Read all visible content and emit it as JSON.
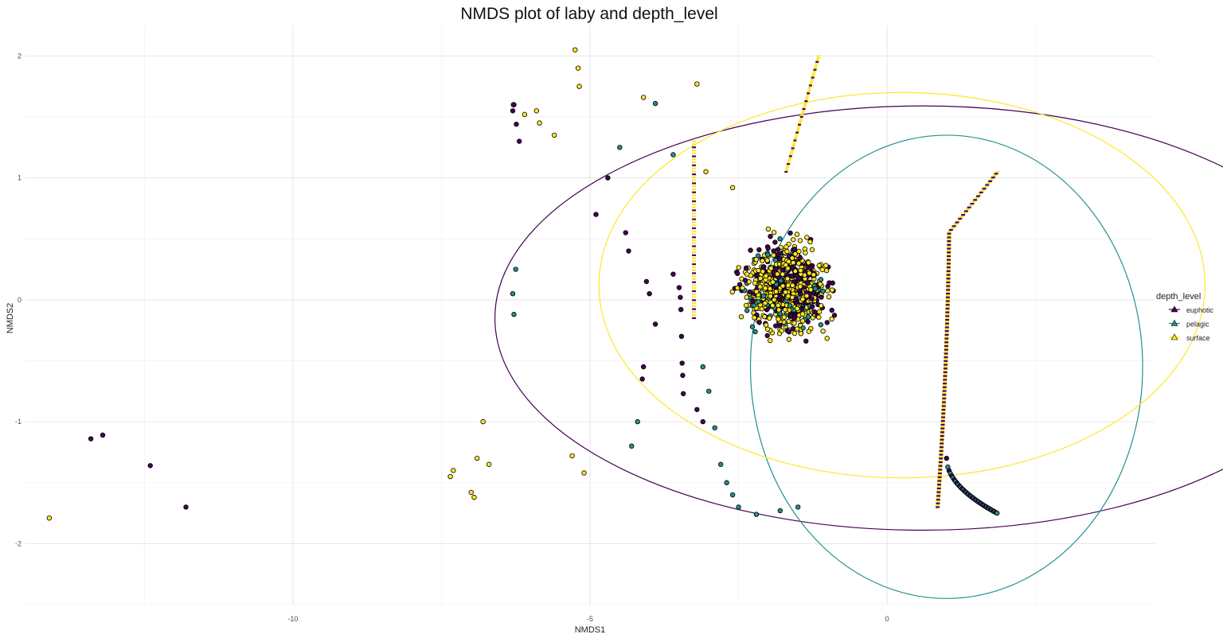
{
  "chart_data": {
    "type": "scatter",
    "title": "NMDS plot of laby and depth_level",
    "xlabel": "NMDS1",
    "ylabel": "NMDS2",
    "xlim": [
      -14.5,
      4.5
    ],
    "ylim": [
      -2.5,
      2.25
    ],
    "xticks": [
      -10,
      -5,
      0
    ],
    "yticks": [
      -2,
      -1,
      0,
      1,
      2
    ],
    "grid": true,
    "legend": {
      "title": "depth_level",
      "position": "right"
    },
    "series": [
      {
        "name": "euphotic",
        "color": "#440154",
        "points": [
          [
            -13.4,
            -1.14
          ],
          [
            -13.2,
            -1.11
          ],
          [
            -12.4,
            -1.36
          ],
          [
            -11.8,
            -1.7
          ],
          [
            -6.3,
            1.55
          ],
          [
            -6.28,
            1.6
          ],
          [
            -6.29,
            1.6
          ],
          [
            -6.24,
            1.44
          ],
          [
            -6.19,
            1.3
          ],
          [
            -3.5,
            0.1
          ],
          [
            -3.48,
            0.02
          ],
          [
            -3.47,
            -0.08
          ],
          [
            -3.46,
            -0.3
          ],
          [
            -3.45,
            -0.52
          ],
          [
            -3.44,
            -0.62
          ],
          [
            -3.43,
            -0.77
          ],
          [
            -4.1,
            -0.55
          ],
          [
            -4.12,
            -0.65
          ],
          [
            -3.9,
            -0.2
          ],
          [
            -3.6,
            0.21
          ],
          [
            -4.0,
            0.05
          ],
          [
            -4.05,
            0.15
          ],
          [
            -3.2,
            -0.9
          ],
          [
            -3.1,
            -1.0
          ],
          [
            -4.35,
            0.4
          ],
          [
            -4.4,
            0.55
          ],
          [
            -4.7,
            1.0
          ],
          [
            -4.9,
            0.7
          ]
        ],
        "ellipse": {
          "center": [
            0.6,
            -0.15
          ],
          "rx": 7.2,
          "ry": 1.74
        }
      },
      {
        "name": "pelagic",
        "color": "#21908C",
        "points": [
          [
            -6.25,
            0.25
          ],
          [
            -6.3,
            0.05
          ],
          [
            -6.28,
            -0.12
          ],
          [
            -4.5,
            1.25
          ],
          [
            -3.9,
            1.61
          ],
          [
            -3.6,
            1.19
          ],
          [
            -3.1,
            -0.55
          ],
          [
            -3.0,
            -0.75
          ],
          [
            -2.9,
            -1.05
          ],
          [
            -2.8,
            -1.35
          ],
          [
            -2.7,
            -1.5
          ],
          [
            -2.6,
            -1.6
          ],
          [
            -2.5,
            -1.7
          ],
          [
            -2.2,
            -1.76
          ],
          [
            -1.8,
            -1.73
          ],
          [
            -1.5,
            -1.7
          ],
          [
            -4.2,
            -1.0
          ],
          [
            -4.3,
            -1.2
          ]
        ],
        "ellipse": {
          "center": [
            1.0,
            -0.55
          ],
          "rx": 3.3,
          "ry": 1.9
        }
      },
      {
        "name": "surface",
        "color": "#FDE725",
        "points": [
          [
            -14.1,
            -1.79
          ],
          [
            -6.1,
            1.52
          ],
          [
            -5.9,
            1.55
          ],
          [
            -5.85,
            1.45
          ],
          [
            -5.6,
            1.35
          ],
          [
            -5.25,
            2.05
          ],
          [
            -5.2,
            1.9
          ],
          [
            -5.18,
            1.75
          ],
          [
            -4.1,
            1.66
          ],
          [
            -3.2,
            1.77
          ],
          [
            -3.05,
            1.05
          ],
          [
            -2.6,
            0.92
          ],
          [
            -2.0,
            0.58
          ],
          [
            -2.1,
            0.32
          ],
          [
            -1.9,
            0.0
          ],
          [
            -6.8,
            -1.0
          ],
          [
            -6.9,
            -1.3
          ],
          [
            -7.3,
            -1.4
          ],
          [
            -7.35,
            -1.45
          ],
          [
            -7.0,
            -1.58
          ],
          [
            -6.95,
            -1.62
          ],
          [
            -6.7,
            -1.35
          ],
          [
            -5.1,
            -1.42
          ],
          [
            -5.3,
            -1.28
          ]
        ],
        "ellipse": {
          "center": [
            0.25,
            0.12
          ],
          "rx": 5.1,
          "ry": 1.58
        }
      }
    ]
  }
}
